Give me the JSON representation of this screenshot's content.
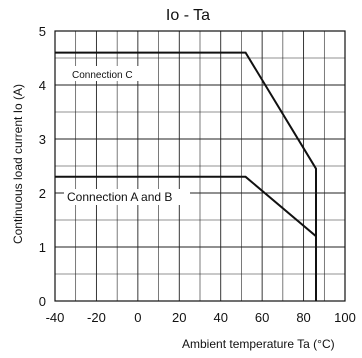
{
  "chart_data": {
    "type": "line",
    "title": "Io - Ta",
    "xlabel": "Ambient temperature Ta (°C)",
    "ylabel": "Continuous load current Io (A)",
    "xlim": [
      -40,
      100
    ],
    "ylim": [
      0,
      5
    ],
    "x_ticks": [
      "-40",
      "-20",
      "0",
      "20",
      "40",
      "60",
      "80",
      "100"
    ],
    "y_ticks": [
      "0",
      "1",
      "2",
      "3",
      "4",
      "5"
    ],
    "grid": true,
    "series": [
      {
        "name": "Connection C",
        "x": [
          -40,
          52,
          86,
          86
        ],
        "y": [
          4.6,
          4.6,
          2.45,
          0
        ]
      },
      {
        "name": "Connection A and B",
        "x": [
          -40,
          52,
          86,
          86
        ],
        "y": [
          2.3,
          2.3,
          1.2,
          0
        ]
      }
    ]
  }
}
